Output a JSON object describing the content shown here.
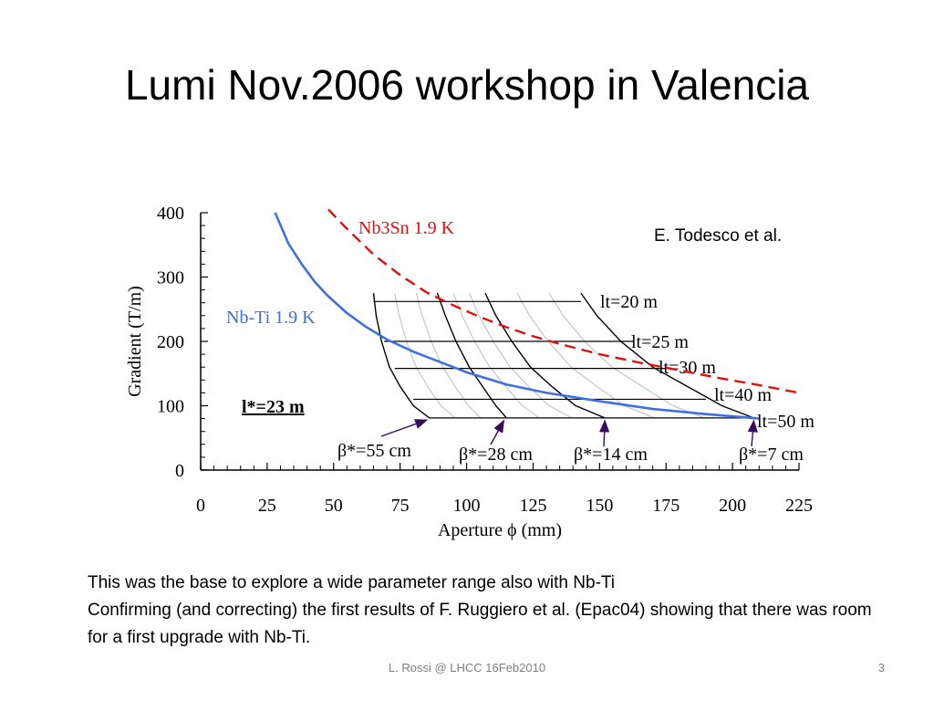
{
  "slide": {
    "title": "Lumi Nov.2006 workshop in Valencia",
    "credit": "E. Todesco et al.",
    "body": [
      "This was the base to explore a wide parameter range also with Nb-Ti",
      "Confirming (and correcting) the first results of F. Ruggiero et al. (Epac04) showing that there was room for a first upgrade with Nb-Ti."
    ],
    "footer": "L. Rossi @ LHCC 16Feb2010",
    "page_number": "3"
  },
  "colors": {
    "nbti": "#3f6fe0",
    "nb3sn": "#e01010",
    "grid_lines": "#000000",
    "arrows": "#3b0b5a"
  },
  "chart_data": {
    "type": "line",
    "xlabel": "Aperture ϕ (mm)",
    "ylabel": "Gradient (T/m)",
    "xlim": [
      0,
      225
    ],
    "ylim": [
      0,
      400
    ],
    "x_ticks": [
      "0",
      "25",
      "50",
      "75",
      "100",
      "125",
      "150",
      "175",
      "200",
      "225"
    ],
    "y_ticks": [
      "0",
      "100",
      "200",
      "300",
      "400"
    ],
    "grid": false,
    "series": [
      {
        "name": "Nb-Ti 1.9 K",
        "style": "solid",
        "color": "#3f6fe0",
        "x": [
          28,
          33,
          38,
          43,
          48,
          55,
          62,
          70,
          80,
          90,
          100,
          115,
          130,
          150,
          170,
          190,
          210
        ],
        "y": [
          400,
          352,
          320,
          292,
          270,
          244,
          223,
          203,
          184,
          168,
          152,
          133,
          120,
          107,
          95,
          87,
          80
        ]
      },
      {
        "name": "Nb3Sn 1.9 K",
        "style": "dashed",
        "color": "#e01010",
        "x": [
          48,
          55,
          65,
          75,
          85,
          95,
          105,
          115,
          125,
          135,
          150,
          165,
          180,
          195,
          210,
          225
        ],
        "y": [
          405,
          375,
          335,
          303,
          276,
          256,
          238,
          222,
          208,
          196,
          180,
          167,
          155,
          143,
          132,
          120
        ]
      }
    ],
    "lt_lines": [
      {
        "label": "lt=20 m",
        "y": 262,
        "x_start": 65,
        "x_end": 143
      },
      {
        "label": "lt=25 m",
        "y": 200,
        "x_start": 69,
        "x_end": 163
      },
      {
        "label": "lt=30 m",
        "y": 158,
        "x_start": 73,
        "x_end": 175
      },
      {
        "label": "lt=40 m",
        "y": 110,
        "x_start": 80,
        "x_end": 190
      },
      {
        "label": "lt=50 m",
        "y": 81,
        "x_start": 86,
        "x_end": 208
      }
    ],
    "beta_curves": [
      {
        "label": "β*=55 cm",
        "x": [
          65,
          66,
          68,
          71,
          75,
          80,
          86
        ],
        "y": [
          275,
          240,
          200,
          160,
          130,
          100,
          81
        ],
        "arrow_from": [
          68,
          55
        ],
        "arrow_to": [
          85,
          82
        ]
      },
      {
        "label": "β*=28 cm",
        "x": [
          89,
          92,
          96,
          101,
          106,
          111,
          115
        ],
        "y": [
          275,
          240,
          200,
          160,
          130,
          100,
          81
        ],
        "arrow_from": [
          112,
          40
        ],
        "arrow_to": [
          114,
          81
        ]
      },
      {
        "label": "β*=14 cm",
        "x": [
          107,
          111,
          117,
          124,
          132,
          141,
          152
        ],
        "y": [
          275,
          240,
          200,
          160,
          130,
          100,
          81
        ],
        "arrow_from": [
          152,
          40
        ],
        "arrow_to": [
          152,
          81
        ]
      },
      {
        "label": "β*=7 cm",
        "x": [
          143,
          149,
          158,
          170,
          183,
          196,
          208
        ],
        "y": [
          275,
          240,
          200,
          160,
          130,
          100,
          81
        ],
        "arrow_from": [
          208,
          40
        ],
        "arrow_to": [
          208,
          81
        ]
      }
    ],
    "annotations": {
      "l_star": "l*=23 m"
    }
  }
}
